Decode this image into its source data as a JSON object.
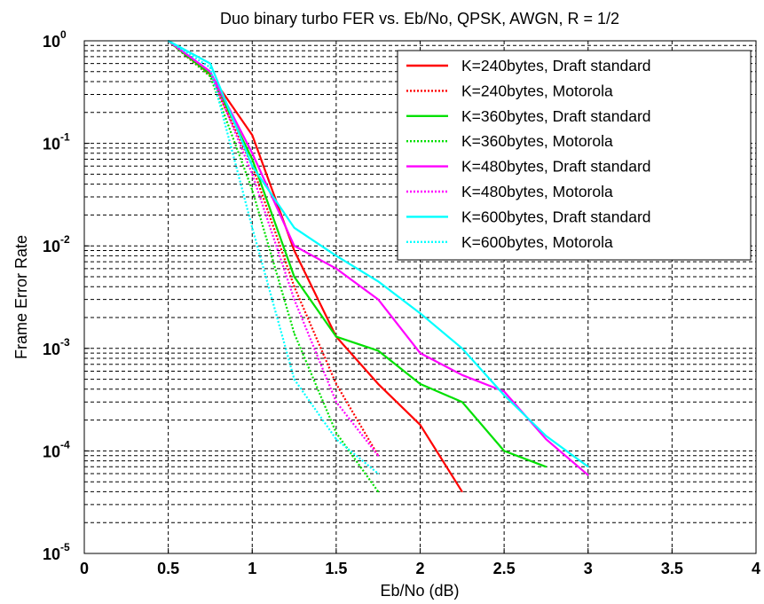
{
  "chart_data": {
    "type": "line",
    "title": "Duo binary turbo FER vs. Eb/No, QPSK, AWGN, R = 1/2",
    "xlabel": "Eb/No (dB)",
    "ylabel": "Frame Error Rate",
    "xlim": [
      0,
      4
    ],
    "ylim": [
      1e-05,
      1
    ],
    "yscale": "log",
    "grid": true,
    "legend_position": "top-right",
    "x_ticks": [
      "0",
      "0.5",
      "1",
      "1.5",
      "2",
      "2.5",
      "3",
      "3.5",
      "4"
    ],
    "y_ticks": [
      {
        "base": "10",
        "exp": "0"
      },
      {
        "base": "10",
        "exp": "-1"
      },
      {
        "base": "10",
        "exp": "-2"
      },
      {
        "base": "10",
        "exp": "-3"
      },
      {
        "base": "10",
        "exp": "-4"
      },
      {
        "base": "10",
        "exp": "-5"
      }
    ],
    "series": [
      {
        "name": "K=240bytes, Draft standard",
        "color": "#ff0000",
        "style": "solid",
        "x": [
          0.5,
          0.75,
          1.0,
          1.25,
          1.5,
          1.75,
          2.0,
          2.25
        ],
        "y": [
          1.0,
          0.47,
          0.12,
          0.009,
          0.0013,
          0.00045,
          0.00018,
          4e-05
        ]
      },
      {
        "name": "K=240bytes, Motorola",
        "color": "#ff0000",
        "style": "dotted",
        "x": [
          0.5,
          0.75,
          1.0,
          1.25,
          1.5,
          1.75
        ],
        "y": [
          1.0,
          0.45,
          0.06,
          0.004,
          0.00045,
          9e-05
        ]
      },
      {
        "name": "K=360bytes, Draft standard",
        "color": "#00e000",
        "style": "solid",
        "x": [
          0.5,
          0.75,
          1.0,
          1.25,
          1.5,
          1.75,
          2.0,
          2.25,
          2.5,
          2.75
        ],
        "y": [
          1.0,
          0.48,
          0.07,
          0.005,
          0.0013,
          0.00095,
          0.00045,
          0.0003,
          0.0001,
          7e-05
        ]
      },
      {
        "name": "K=360bytes, Motorola",
        "color": "#00e000",
        "style": "dotted",
        "x": [
          0.5,
          0.75,
          1.0,
          1.25,
          1.5,
          1.75
        ],
        "y": [
          1.0,
          0.45,
          0.035,
          0.0014,
          0.00015,
          4e-05
        ]
      },
      {
        "name": "K=480bytes, Draft standard",
        "color": "#ff00ff",
        "style": "solid",
        "x": [
          0.5,
          0.75,
          1.0,
          1.25,
          1.5,
          1.75,
          2.0,
          2.25,
          2.5,
          2.75,
          3.0
        ],
        "y": [
          1.0,
          0.5,
          0.08,
          0.01,
          0.006,
          0.003,
          0.0009,
          0.00055,
          0.00038,
          0.00013,
          5.8e-05
        ]
      },
      {
        "name": "K=480bytes, Motorola",
        "color": "#ff00ff",
        "style": "dotted",
        "x": [
          0.5,
          0.75,
          1.0,
          1.25,
          1.5,
          1.75
        ],
        "y": [
          1.0,
          0.5,
          0.05,
          0.003,
          0.0003,
          9e-05
        ]
      },
      {
        "name": "K=600bytes, Draft standard",
        "color": "#00ffff",
        "style": "solid",
        "x": [
          0.5,
          0.75,
          1.0,
          1.25,
          1.5,
          1.75,
          2.0,
          2.25,
          2.5,
          2.75,
          3.0
        ],
        "y": [
          1.0,
          0.6,
          0.06,
          0.015,
          0.008,
          0.0045,
          0.0022,
          0.001,
          0.00035,
          0.00014,
          7e-05
        ]
      },
      {
        "name": "K=600bytes, Motorola",
        "color": "#00ffff",
        "style": "dotted",
        "x": [
          0.5,
          0.75,
          1.0,
          1.25,
          1.5,
          1.75
        ],
        "y": [
          1.0,
          0.55,
          0.015,
          0.0005,
          0.00013,
          6e-05
        ]
      }
    ]
  }
}
